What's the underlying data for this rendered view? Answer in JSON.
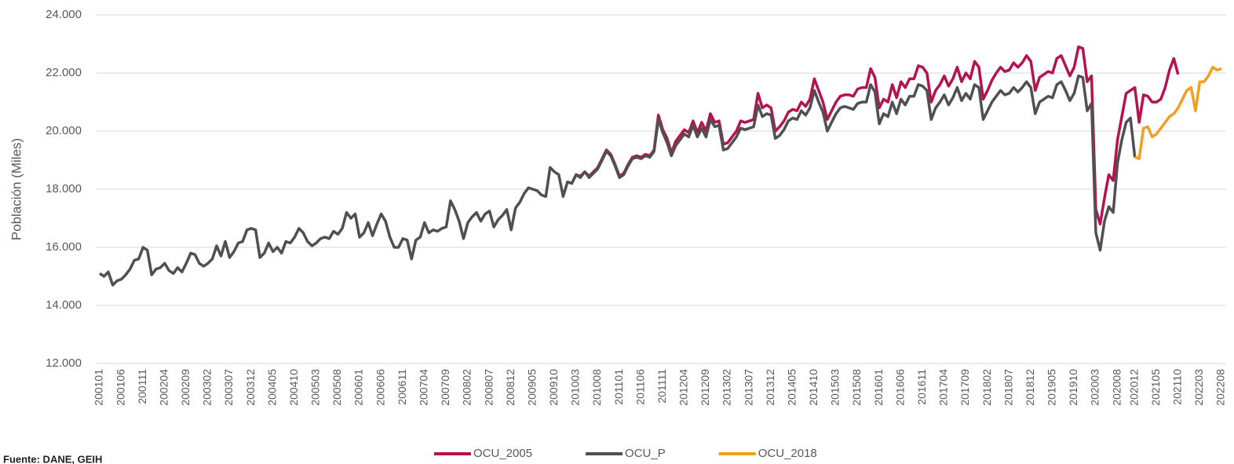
{
  "chart_data": {
    "type": "line",
    "y_label": "Población (Miles)",
    "source": "Fuente: DANE, GEIH",
    "ylim": [
      12000,
      24000
    ],
    "yticks": [
      {
        "value": 12000,
        "label": "12.000"
      },
      {
        "value": 14000,
        "label": "14.000"
      },
      {
        "value": 16000,
        "label": "16.000"
      },
      {
        "value": 18000,
        "label": "18.000"
      },
      {
        "value": 20000,
        "label": "20.000"
      },
      {
        "value": 22000,
        "label": "22.000"
      },
      {
        "value": 24000,
        "label": "24.000"
      }
    ],
    "grid": true,
    "legend": "bottom",
    "categories": [
      "200101",
      null,
      null,
      null,
      null,
      "200106",
      null,
      null,
      null,
      null,
      "200111",
      null,
      null,
      null,
      null,
      "200204",
      null,
      null,
      null,
      null,
      "200209",
      null,
      null,
      null,
      null,
      "200302",
      null,
      null,
      null,
      null,
      "200307",
      null,
      null,
      null,
      null,
      "200312",
      null,
      null,
      null,
      null,
      "200405",
      null,
      null,
      null,
      null,
      "200410",
      null,
      null,
      null,
      null,
      "200503",
      null,
      null,
      null,
      null,
      "200508",
      null,
      null,
      null,
      null,
      "200601",
      null,
      null,
      null,
      null,
      "200606",
      null,
      null,
      null,
      null,
      "200611",
      null,
      null,
      null,
      null,
      "200704",
      null,
      null,
      null,
      null,
      "200709",
      null,
      null,
      null,
      null,
      "200802",
      null,
      null,
      null,
      null,
      "200807",
      null,
      null,
      null,
      null,
      "200812",
      null,
      null,
      null,
      null,
      "200905",
      null,
      null,
      null,
      null,
      "200910",
      null,
      null,
      null,
      null,
      "201003",
      null,
      null,
      null,
      null,
      "201008",
      null,
      null,
      null,
      null,
      "201101",
      null,
      null,
      null,
      null,
      "201106",
      null,
      null,
      null,
      null,
      "201111",
      null,
      null,
      null,
      null,
      "201204",
      null,
      null,
      null,
      null,
      "201209",
      null,
      null,
      null,
      null,
      "201302",
      null,
      null,
      null,
      null,
      "201307",
      null,
      null,
      null,
      null,
      "201312",
      null,
      null,
      null,
      null,
      "201405",
      null,
      null,
      null,
      null,
      "201410",
      null,
      null,
      null,
      null,
      "201503",
      null,
      null,
      null,
      null,
      "201508",
      null,
      null,
      null,
      null,
      "201601",
      null,
      null,
      null,
      null,
      "201606",
      null,
      null,
      null,
      null,
      "201611",
      null,
      null,
      null,
      null,
      "201704",
      null,
      null,
      null,
      null,
      "201709",
      null,
      null,
      null,
      null,
      "201802",
      null,
      null,
      null,
      null,
      "201807",
      null,
      null,
      null,
      null,
      "201812",
      null,
      null,
      null,
      null,
      "201905",
      null,
      null,
      null,
      null,
      "201910",
      null,
      null,
      null,
      null,
      "202003",
      null,
      null,
      null,
      null,
      "202008",
      null,
      null,
      null,
      "202012",
      null,
      null,
      null,
      null,
      "202105",
      null,
      null,
      null,
      null,
      "202110",
      null,
      null,
      null,
      null,
      "202203",
      null,
      null,
      null,
      null,
      "202208"
    ],
    "series": [
      {
        "name": "OCU_2005",
        "color": "#b5134f",
        "values": [
          null,
          null,
          null,
          null,
          null,
          null,
          null,
          null,
          null,
          null,
          null,
          null,
          null,
          null,
          null,
          null,
          null,
          null,
          null,
          null,
          null,
          null,
          null,
          null,
          null,
          null,
          null,
          null,
          null,
          null,
          null,
          null,
          null,
          null,
          null,
          null,
          null,
          null,
          null,
          null,
          null,
          null,
          null,
          null,
          null,
          null,
          null,
          null,
          null,
          null,
          null,
          null,
          null,
          null,
          null,
          null,
          null,
          null,
          null,
          null,
          null,
          null,
          null,
          null,
          null,
          null,
          null,
          null,
          null,
          null,
          null,
          null,
          null,
          null,
          null,
          null,
          null,
          null,
          null,
          null,
          null,
          null,
          null,
          null,
          null,
          null,
          null,
          null,
          null,
          null,
          null,
          null,
          null,
          null,
          null,
          null,
          null,
          null,
          null,
          null,
          null,
          null,
          null,
          null,
          null,
          null,
          null,
          null,
          18250,
          18200,
          18500,
          18450,
          18600,
          18450,
          18600,
          18750,
          19050,
          19350,
          19200,
          18850,
          18450,
          18550,
          18850,
          19100,
          19150,
          19100,
          19200,
          19150,
          19350,
          20550,
          20050,
          19750,
          19250,
          19650,
          19850,
          20050,
          19950,
          20350,
          19950,
          20300,
          20000,
          20600,
          20300,
          20350,
          19550,
          19600,
          19800,
          20000,
          20350,
          20300,
          20350,
          20400,
          21300,
          20800,
          20900,
          20800,
          20000,
          20150,
          20350,
          20650,
          20750,
          20700,
          21000,
          20850,
          21100,
          21800,
          21400,
          21000,
          20400,
          20700,
          21000,
          21200,
          21250,
          21250,
          21200,
          21450,
          21500,
          21500,
          22150,
          21850,
          20800,
          21100,
          21000,
          21600,
          21150,
          21700,
          21500,
          21800,
          21800,
          22250,
          22200,
          22000,
          21000,
          21400,
          21600,
          21900,
          21550,
          21800,
          22200,
          21700,
          22000,
          21800,
          22400,
          22200,
          21100,
          21400,
          21750,
          22000,
          22200,
          22050,
          22100,
          22350,
          22200,
          22350,
          22600,
          22400,
          21400,
          21850,
          21950,
          22050,
          22000,
          22500,
          22600,
          22250,
          21900,
          22200,
          22900,
          22850,
          21700,
          21900,
          17300,
          16800,
          17700,
          18500,
          18300,
          19700,
          20500,
          21300,
          21400,
          21500,
          20300,
          21250,
          21200,
          21000,
          21000,
          21100,
          21500,
          22100,
          22500,
          21950,
          null,
          null,
          null,
          null,
          null,
          null,
          null,
          null,
          null,
          null
        ]
      },
      {
        "name": "OCU_P",
        "color": "#505050",
        "values": [
          15100,
          15000,
          15150,
          14700,
          14850,
          14900,
          15050,
          15250,
          15550,
          15600,
          16000,
          15900,
          15050,
          15250,
          15300,
          15450,
          15200,
          15100,
          15300,
          15150,
          15450,
          15800,
          15750,
          15450,
          15350,
          15450,
          15600,
          16050,
          15700,
          16200,
          15650,
          15850,
          16150,
          16200,
          16600,
          16650,
          16600,
          15650,
          15800,
          16150,
          15850,
          16000,
          15800,
          16200,
          16150,
          16350,
          16650,
          16500,
          16200,
          16050,
          16150,
          16300,
          16350,
          16300,
          16550,
          16450,
          16650,
          17200,
          17000,
          17150,
          16350,
          16500,
          16850,
          16400,
          16800,
          17150,
          16900,
          16350,
          16000,
          16000,
          16300,
          16250,
          15600,
          16250,
          16350,
          16850,
          16500,
          16600,
          16550,
          16650,
          16700,
          17600,
          17300,
          16900,
          16300,
          16850,
          17050,
          17200,
          16900,
          17150,
          17250,
          16700,
          16950,
          17100,
          17300,
          16600,
          17350,
          17550,
          17850,
          18050,
          18000,
          17950,
          17800,
          17750,
          18750,
          18600,
          18500,
          17750,
          18250,
          18200,
          18500,
          18400,
          18600,
          18400,
          18550,
          18700,
          19000,
          19300,
          19150,
          18800,
          18400,
          18500,
          18800,
          19050,
          19100,
          19050,
          19150,
          19100,
          19300,
          20400,
          19950,
          19600,
          19150,
          19500,
          19700,
          19900,
          19800,
          20200,
          19800,
          20100,
          19800,
          20400,
          20150,
          20200,
          19350,
          19400,
          19600,
          19800,
          20100,
          20050,
          20100,
          20150,
          20900,
          20500,
          20600,
          20550,
          19750,
          19850,
          20050,
          20350,
          20450,
          20400,
          20700,
          20550,
          20800,
          21400,
          21000,
          20650,
          20000,
          20300,
          20600,
          20800,
          20850,
          20800,
          20750,
          20950,
          21000,
          21000,
          21600,
          21350,
          20250,
          20600,
          20500,
          21000,
          20600,
          21100,
          20900,
          21200,
          21200,
          21600,
          21550,
          21400,
          20400,
          20800,
          21000,
          21250,
          20900,
          21150,
          21500,
          21050,
          21300,
          21100,
          21600,
          21500,
          20400,
          20700,
          21000,
          21200,
          21400,
          21250,
          21300,
          21500,
          21350,
          21500,
          21700,
          21500,
          20600,
          21000,
          21100,
          21200,
          21150,
          21600,
          21700,
          21400,
          21050,
          21300,
          21900,
          21850,
          20700,
          20950,
          16500,
          15900,
          16900,
          17400,
          17200,
          18900,
          19700,
          20300,
          20450,
          19100,
          null,
          null,
          null,
          null,
          null,
          null,
          null,
          null,
          null,
          null,
          null,
          null,
          null,
          null,
          null,
          null,
          null,
          null,
          null,
          null
        ]
      },
      {
        "name": "OCU_2018",
        "color": "#f0a020",
        "values": [
          null,
          null,
          null,
          null,
          null,
          null,
          null,
          null,
          null,
          null,
          null,
          null,
          null,
          null,
          null,
          null,
          null,
          null,
          null,
          null,
          null,
          null,
          null,
          null,
          null,
          null,
          null,
          null,
          null,
          null,
          null,
          null,
          null,
          null,
          null,
          null,
          null,
          null,
          null,
          null,
          null,
          null,
          null,
          null,
          null,
          null,
          null,
          null,
          null,
          null,
          null,
          null,
          null,
          null,
          null,
          null,
          null,
          null,
          null,
          null,
          null,
          null,
          null,
          null,
          null,
          null,
          null,
          null,
          null,
          null,
          null,
          null,
          null,
          null,
          null,
          null,
          null,
          null,
          null,
          null,
          null,
          null,
          null,
          null,
          null,
          null,
          null,
          null,
          null,
          null,
          null,
          null,
          null,
          null,
          null,
          null,
          null,
          null,
          null,
          null,
          null,
          null,
          null,
          null,
          null,
          null,
          null,
          null,
          null,
          null,
          null,
          null,
          null,
          null,
          null,
          null,
          null,
          null,
          null,
          null,
          null,
          null,
          null,
          null,
          null,
          null,
          null,
          null,
          null,
          null,
          null,
          null,
          null,
          null,
          null,
          null,
          null,
          null,
          null,
          null,
          null,
          null,
          null,
          null,
          null,
          null,
          null,
          null,
          null,
          null,
          null,
          null,
          null,
          null,
          null,
          null,
          null,
          null,
          null,
          null,
          null,
          null,
          null,
          null,
          null,
          null,
          null,
          null,
          null,
          null,
          null,
          null,
          null,
          null,
          null,
          null,
          null,
          null,
          null,
          null,
          null,
          null,
          null,
          null,
          null,
          null,
          null,
          null,
          null,
          null,
          null,
          null,
          null,
          null,
          null,
          null,
          null,
          null,
          null,
          null,
          null,
          null,
          null,
          null,
          null,
          null,
          null,
          null,
          null,
          null,
          null,
          null,
          null,
          null,
          null,
          null,
          null,
          null,
          null,
          null,
          null,
          null,
          null,
          null,
          null,
          null,
          null,
          null,
          null,
          null,
          null,
          null,
          null,
          null,
          null,
          null,
          null,
          null,
          null,
          19100,
          19050,
          20100,
          20150,
          19800,
          19900,
          20100,
          20300,
          20500,
          20600,
          20800,
          21100,
          21400,
          21500,
          20700,
          21700,
          21700,
          21900,
          22200,
          22100,
          22150
        ]
      }
    ]
  }
}
